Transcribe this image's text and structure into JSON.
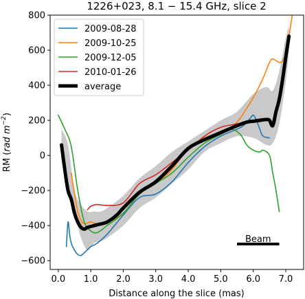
{
  "chart_data": {
    "type": "line",
    "title": "1226+023, 8.1 − 15.4 GHz, slice 2",
    "xlabel": "Distance along the slice (mas)",
    "ylabel": "RM (rad m⁻²)",
    "ylabel_main": "RM (",
    "ylabel_unit": "rad m",
    "ylabel_sup": "−2",
    "ylabel_close": ")",
    "xlim": [
      -0.25,
      7.55
    ],
    "ylim": [
      -650,
      800
    ],
    "xticks": [
      0.0,
      1.0,
      2.0,
      3.0,
      4.0,
      5.0,
      6.0,
      7.0
    ],
    "xtick_labels": [
      "0.0",
      "1.0",
      "2.0",
      "3.0",
      "4.0",
      "5.0",
      "6.0",
      "7.0"
    ],
    "yticks": [
      -600,
      -400,
      -200,
      0,
      200,
      400,
      600,
      800
    ],
    "ytick_labels": [
      "−600",
      "−400",
      "−200",
      "0",
      "200",
      "400",
      "600",
      "800"
    ],
    "legend_position": "top-left",
    "grid": false,
    "series": [
      {
        "name": "2009-08-28",
        "color": "#1f77b4",
        "x": [
          0.25,
          0.3,
          0.35,
          0.4,
          0.5,
          0.6,
          0.7,
          0.8,
          1.0,
          1.2,
          1.5,
          2.0,
          2.5,
          3.0,
          3.5,
          4.0,
          4.5,
          5.0,
          5.5,
          5.7,
          5.9,
          6.0,
          6.1,
          6.2,
          6.3,
          6.5
        ],
        "y": [
          -520,
          -380,
          -450,
          -500,
          -540,
          -565,
          -570,
          -555,
          -520,
          -500,
          -450,
          -340,
          -240,
          -220,
          -150,
          -40,
          50,
          110,
          150,
          170,
          210,
          230,
          200,
          150,
          110,
          100
        ]
      },
      {
        "name": "2009-10-25",
        "color": "#ff7f0e",
        "x": [
          0.4,
          0.5,
          0.6,
          0.7,
          0.8,
          1.0,
          1.2,
          1.5,
          2.0,
          2.5,
          3.0,
          3.5,
          4.0,
          4.5,
          5.0,
          5.5,
          6.0,
          6.3,
          6.5,
          6.6,
          6.8,
          6.9,
          7.0,
          7.1,
          7.2
        ],
        "y": [
          -100,
          -220,
          -320,
          -370,
          -390,
          -380,
          -390,
          -380,
          -330,
          -220,
          -160,
          -80,
          40,
          100,
          130,
          190,
          330,
          440,
          530,
          550,
          530,
          540,
          580,
          680,
          800
        ]
      },
      {
        "name": "2009-12-05",
        "color": "#2ca02c",
        "x": [
          0.0,
          0.2,
          0.4,
          0.6,
          0.8,
          1.0,
          1.2,
          1.5,
          2.0,
          2.5,
          3.0,
          3.5,
          4.0,
          4.5,
          5.0,
          5.3,
          5.6,
          5.8,
          6.0,
          6.2,
          6.3,
          6.5,
          6.6,
          6.7,
          6.8
        ],
        "y": [
          230,
          150,
          50,
          -200,
          -380,
          -430,
          -440,
          -400,
          -330,
          -220,
          -160,
          -100,
          -10,
          70,
          120,
          150,
          120,
          60,
          30,
          20,
          30,
          0,
          -100,
          -200,
          -320
        ]
      },
      {
        "name": "2010-01-26",
        "color": "#d62728",
        "x": [
          0.9,
          1.0,
          1.2,
          1.5,
          2.0,
          2.5,
          3.0,
          3.5,
          4.0,
          4.5,
          5.0,
          5.5,
          6.0,
          6.3,
          6.5
        ],
        "y": [
          -310,
          -290,
          -280,
          -285,
          -270,
          -160,
          -110,
          -40,
          30,
          110,
          160,
          180,
          200,
          210,
          200
        ]
      },
      {
        "name": "average",
        "color": "#000000",
        "x": [
          0.1,
          0.2,
          0.3,
          0.4,
          0.5,
          0.6,
          0.7,
          0.8,
          0.9,
          1.0,
          1.2,
          1.5,
          1.8,
          2.0,
          2.5,
          3.0,
          3.5,
          4.0,
          4.5,
          5.0,
          5.5,
          5.8,
          6.0,
          6.2,
          6.4,
          6.5,
          6.6,
          6.7,
          6.8,
          6.9,
          7.0,
          7.1
        ],
        "y": [
          60,
          -80,
          -200,
          -250,
          -330,
          -380,
          -410,
          -420,
          -410,
          -405,
          -395,
          -380,
          -340,
          -300,
          -210,
          -150,
          -60,
          40,
          90,
          130,
          170,
          190,
          195,
          200,
          205,
          200,
          170,
          250,
          320,
          430,
          560,
          680
        ]
      }
    ],
    "bands": [
      {
        "color": "#c9c9c9",
        "x": [
          0.1,
          0.3,
          0.5,
          0.7,
          0.9,
          1.1,
          1.3,
          1.5,
          2.0,
          2.5,
          3.0,
          3.5,
          4.0,
          4.5,
          5.0,
          5.5,
          6.0,
          6.4,
          6.6,
          6.8,
          7.0,
          7.1
        ],
        "upper": [
          150,
          60,
          -200,
          -280,
          -320,
          -320,
          -320,
          -300,
          -230,
          -130,
          -60,
          20,
          80,
          140,
          200,
          250,
          350,
          390,
          370,
          480,
          670,
          740
        ],
        "lower": [
          -20,
          -200,
          -330,
          -470,
          -540,
          -500,
          -490,
          -470,
          -400,
          -300,
          -240,
          -160,
          -80,
          20,
          70,
          110,
          100,
          60,
          70,
          180,
          420,
          600
        ]
      }
    ],
    "annotation": {
      "text": "Beam",
      "x_start": 5.5,
      "x_end": 6.8,
      "y": -505
    }
  }
}
